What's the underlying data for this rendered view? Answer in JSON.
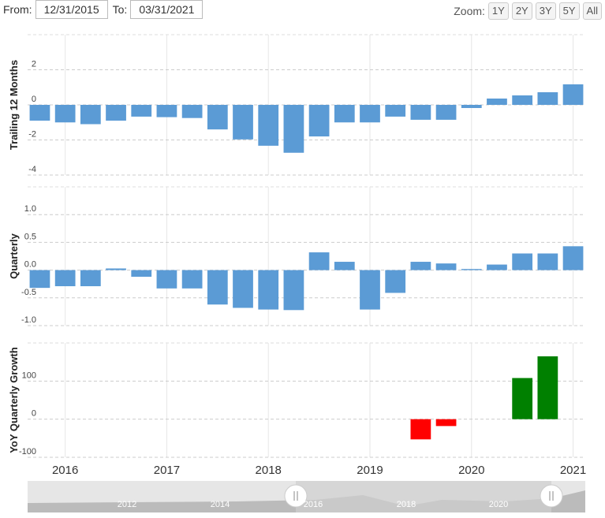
{
  "controls": {
    "from_label": "From:",
    "from_date": "12/31/2015",
    "to_label": "To:",
    "to_date": "03/31/2021",
    "zoom_label": "Zoom:",
    "zoom_buttons": [
      "1Y",
      "2Y",
      "3Y",
      "5Y",
      "All"
    ]
  },
  "chart_data": [
    {
      "type": "bar",
      "y_label": "Trailing 12 Months",
      "color": "#5b9bd5",
      "x": [
        2015.75,
        2016,
        2016.25,
        2016.5,
        2016.75,
        2017,
        2017.25,
        2017.5,
        2017.75,
        2018,
        2018.25,
        2018.5,
        2018.75,
        2019,
        2019.25,
        2019.5,
        2019.75,
        2020,
        2020.25,
        2020.5,
        2020.75,
        2021
      ],
      "values": [
        -0.9,
        -1.0,
        -1.1,
        -0.9,
        -0.67,
        -0.7,
        -0.75,
        -1.4,
        -1.97,
        -2.33,
        -2.73,
        -1.8,
        -1.0,
        -1.0,
        -0.67,
        -0.85,
        -0.85,
        -0.18,
        0.36,
        0.54,
        0.72,
        1.17
      ],
      "xlim": [
        2015.63,
        2021.12
      ],
      "ylim": [
        -4,
        4
      ],
      "yticks": [
        -4,
        -2,
        0,
        2
      ],
      "grid": true
    },
    {
      "type": "bar",
      "y_label": "Quarterly",
      "color": "#5b9bd5",
      "x": [
        2015.75,
        2016,
        2016.25,
        2016.5,
        2016.75,
        2017,
        2017.25,
        2017.5,
        2017.75,
        2018,
        2018.25,
        2018.5,
        2018.75,
        2019,
        2019.25,
        2019.5,
        2019.75,
        2020,
        2020.25,
        2020.5,
        2020.75,
        2021
      ],
      "values": [
        -0.32,
        -0.29,
        -0.29,
        0.03,
        -0.12,
        -0.33,
        -0.33,
        -0.62,
        -0.68,
        -0.71,
        -0.72,
        0.32,
        0.15,
        -0.71,
        -0.41,
        0.15,
        0.12,
        0.02,
        0.1,
        0.3,
        0.3,
        0.43
      ],
      "xlim": [
        2015.63,
        2021.12
      ],
      "ylim": [
        -1,
        1.5
      ],
      "yticks": [
        {
          "value": -1,
          "label": "-1.0"
        },
        -0.5,
        {
          "value": 0,
          "label": "0.0"
        },
        0.5,
        {
          "value": 1,
          "label": "1.0"
        }
      ],
      "grid": true
    },
    {
      "type": "bar",
      "y_label": "YoY Quarterly Growth",
      "positive_color": "#008000",
      "negative_color": "#ff0000",
      "x": [
        2015.75,
        2016,
        2016.25,
        2016.5,
        2016.75,
        2017,
        2017.25,
        2017.5,
        2017.75,
        2018,
        2018.25,
        2018.5,
        2018.75,
        2019,
        2019.25,
        2019.5,
        2019.75,
        2020,
        2020.25,
        2020.5,
        2020.75,
        2021
      ],
      "values": [
        null,
        null,
        null,
        null,
        null,
        null,
        null,
        null,
        null,
        null,
        null,
        null,
        null,
        null,
        null,
        -53,
        -18,
        null,
        null,
        108,
        165,
        null
      ],
      "xlim": [
        2015.63,
        2021.12
      ],
      "ylim": [
        -100,
        200
      ],
      "yticks": [
        -100,
        0,
        100
      ],
      "xticks": [
        2016,
        2017,
        2018,
        2019,
        2020,
        2021
      ],
      "grid": true
    }
  ],
  "navigator": {
    "labels": [
      "2012",
      "2014",
      "2016",
      "2018",
      "2020"
    ]
  }
}
